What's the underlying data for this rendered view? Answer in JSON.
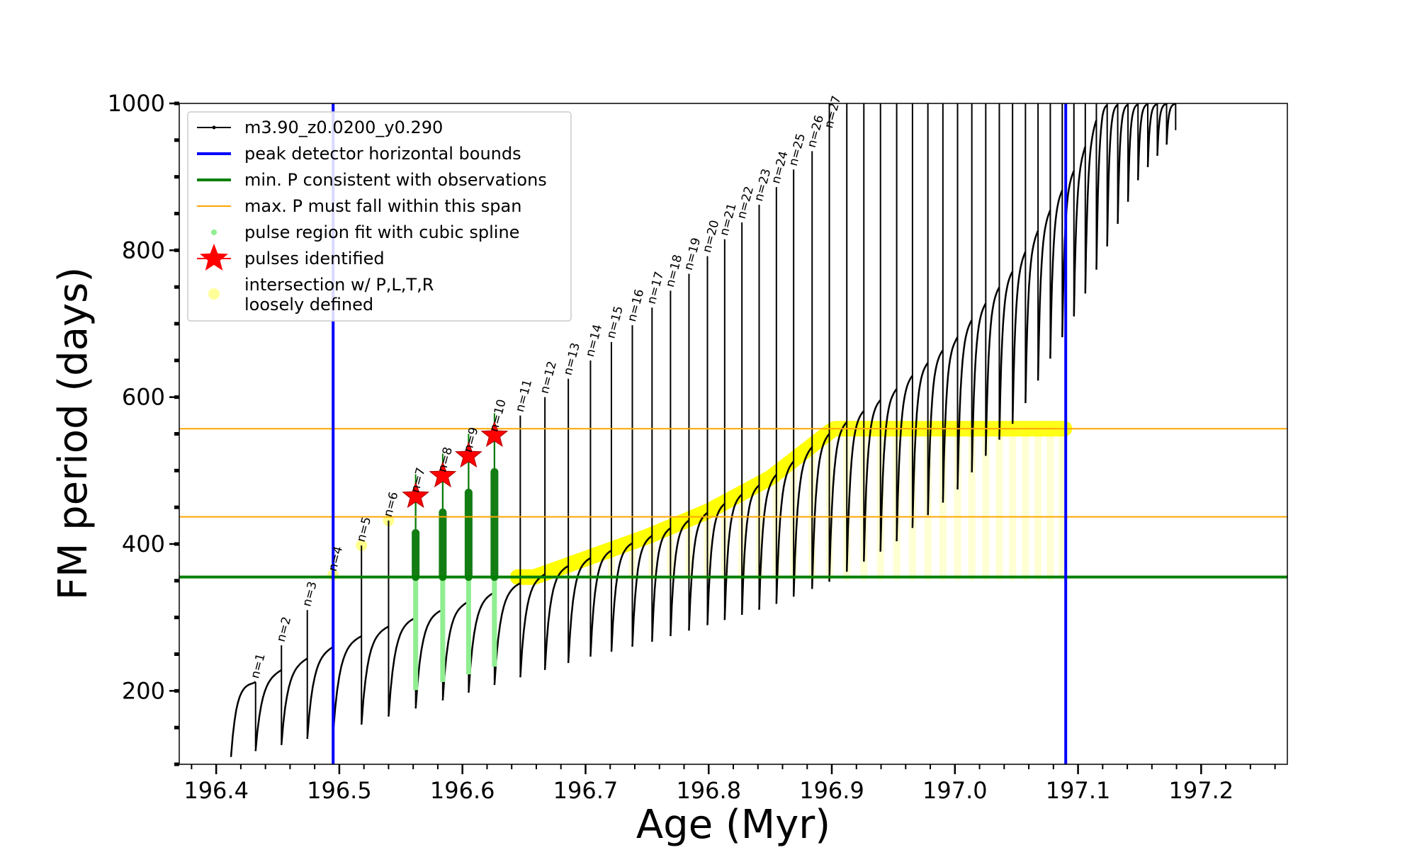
{
  "chart_data": {
    "type": "scatter",
    "xlabel": "Age (Myr)",
    "ylabel": "FM period (days)",
    "xlim": [
      196.37,
      197.27
    ],
    "ylim": [
      100,
      1000
    ],
    "xticks": [
      196.4,
      196.5,
      196.6,
      196.7,
      196.8,
      196.9,
      197.0,
      197.1,
      197.2
    ],
    "xtick_labels": [
      "196.4",
      "196.5",
      "196.6",
      "196.7",
      "196.8",
      "196.9",
      "197.0",
      "197.1",
      "197.2"
    ],
    "yticks": [
      200,
      400,
      600,
      800,
      1000
    ],
    "ytick_labels": [
      "200",
      "400",
      "600",
      "800",
      "1000"
    ],
    "legend_position": "top-left",
    "legend": [
      {
        "label": "m3.90_z0.0200_y0.290",
        "type": "line-dot",
        "color": "#000000"
      },
      {
        "label": "peak detector horizontal bounds",
        "type": "line",
        "color": "#0000ff"
      },
      {
        "label": "min. P consistent with observations",
        "type": "line",
        "color": "#008000"
      },
      {
        "label": "max. P must fall within this span",
        "type": "line-thin",
        "color": "#ffa500"
      },
      {
        "label": "pulse region fit with cubic spline",
        "type": "dot",
        "color": "#90ee90"
      },
      {
        "label": "pulses identified",
        "type": "star",
        "color": "#ff0000"
      },
      {
        "label": "intersection w/ P,L,T,R",
        "label2": "loosely defined",
        "type": "circle",
        "color": "#ffff99"
      }
    ],
    "vertical_lines": [
      196.495,
      197.09
    ],
    "min_period_line": 355,
    "max_period_span": [
      437,
      557
    ],
    "pulses": [
      {
        "n": 1,
        "age": 196.432,
        "peak": 212
      },
      {
        "n": 2,
        "age": 196.453,
        "peak": 262
      },
      {
        "n": 3,
        "age": 196.474,
        "peak": 310
      },
      {
        "n": 4,
        "age": 196.495,
        "peak": 358
      },
      {
        "n": 5,
        "age": 196.518,
        "peak": 398
      },
      {
        "n": 6,
        "age": 196.54,
        "peak": 432
      },
      {
        "n": 7,
        "age": 196.562,
        "peak": 465
      },
      {
        "n": 8,
        "age": 196.584,
        "peak": 493
      },
      {
        "n": 9,
        "age": 196.605,
        "peak": 520
      },
      {
        "n": 10,
        "age": 196.626,
        "peak": 548
      },
      {
        "n": 11,
        "age": 196.647,
        "peak": 575
      },
      {
        "n": 12,
        "age": 196.667,
        "peak": 600
      },
      {
        "n": 13,
        "age": 196.686,
        "peak": 625
      },
      {
        "n": 14,
        "age": 196.704,
        "peak": 650
      },
      {
        "n": 15,
        "age": 196.721,
        "peak": 675
      },
      {
        "n": 16,
        "age": 196.738,
        "peak": 698
      },
      {
        "n": 17,
        "age": 196.754,
        "peak": 722
      },
      {
        "n": 18,
        "age": 196.769,
        "peak": 745
      },
      {
        "n": 19,
        "age": 196.784,
        "peak": 768
      },
      {
        "n": 20,
        "age": 196.799,
        "peak": 792
      },
      {
        "n": 21,
        "age": 196.813,
        "peak": 815
      },
      {
        "n": 22,
        "age": 196.827,
        "peak": 838
      },
      {
        "n": 23,
        "age": 196.841,
        "peak": 862
      },
      {
        "n": 24,
        "age": 196.855,
        "peak": 886
      },
      {
        "n": 25,
        "age": 196.869,
        "peak": 910
      },
      {
        "n": 26,
        "age": 196.884,
        "peak": 935
      },
      {
        "n": 27,
        "age": 196.898,
        "peak": 1000
      }
    ],
    "identified_pulses": [
      {
        "n": 7,
        "age": 196.562,
        "period": 465
      },
      {
        "n": 8,
        "age": 196.584,
        "period": 493
      },
      {
        "n": 9,
        "age": 196.605,
        "period": 520
      },
      {
        "n": 10,
        "age": 196.626,
        "period": 548
      }
    ],
    "baseline_curve": [
      {
        "age": 196.412,
        "period": 110
      },
      {
        "age": 196.45,
        "period": 125
      },
      {
        "age": 196.5,
        "period": 145
      },
      {
        "age": 196.55,
        "period": 170
      },
      {
        "age": 196.6,
        "period": 195
      },
      {
        "age": 196.65,
        "period": 220
      },
      {
        "age": 196.7,
        "period": 245
      },
      {
        "age": 196.75,
        "period": 265
      },
      {
        "age": 196.8,
        "period": 290
      },
      {
        "age": 196.85,
        "period": 315
      },
      {
        "age": 196.9,
        "period": 350
      },
      {
        "age": 196.95,
        "period": 400
      },
      {
        "age": 197.0,
        "period": 470
      },
      {
        "age": 197.05,
        "period": 570
      },
      {
        "age": 197.1,
        "period": 720
      },
      {
        "age": 197.15,
        "period": 900
      },
      {
        "age": 197.18,
        "period": 960
      }
    ],
    "upper_envelope": [
      {
        "age": 196.43,
        "period": 212
      },
      {
        "age": 196.5,
        "period": 265
      },
      {
        "age": 196.55,
        "period": 295
      },
      {
        "age": 196.6,
        "period": 320
      },
      {
        "age": 196.65,
        "period": 350
      },
      {
        "age": 196.7,
        "period": 380
      },
      {
        "age": 196.75,
        "period": 410
      },
      {
        "age": 196.8,
        "period": 445
      },
      {
        "age": 196.85,
        "period": 490
      },
      {
        "age": 196.9,
        "period": 555
      },
      {
        "age": 196.95,
        "period": 610
      },
      {
        "age": 197.0,
        "period": 680
      },
      {
        "age": 197.05,
        "period": 780
      },
      {
        "age": 197.1,
        "period": 920
      },
      {
        "age": 197.12,
        "period": 1000
      }
    ]
  }
}
